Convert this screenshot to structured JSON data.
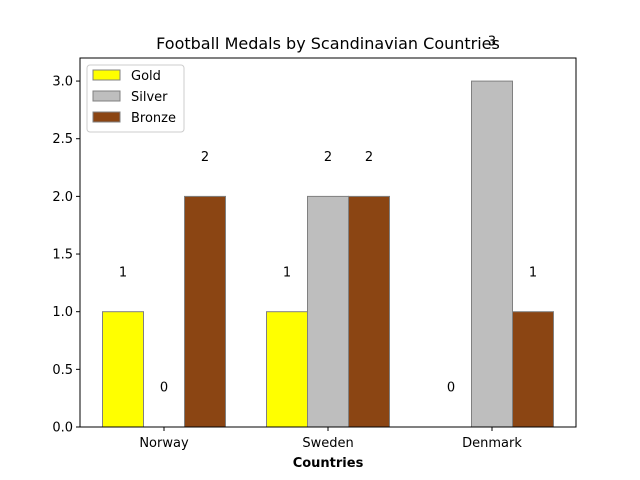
{
  "chart_data": {
    "type": "bar",
    "title": "Football Medals by Scandinavian Countries",
    "xlabel": "Countries",
    "ylabel": "",
    "categories": [
      "Norway",
      "Sweden",
      "Denmark"
    ],
    "series": [
      {
        "name": "Gold",
        "values": [
          1,
          1,
          0
        ],
        "color": "#ffff00"
      },
      {
        "name": "Silver",
        "values": [
          0,
          2,
          3
        ],
        "color": "#bebebe"
      },
      {
        "name": "Bronze",
        "values": [
          2,
          2,
          1
        ],
        "color": "#8b4513"
      }
    ],
    "ylim": [
      0,
      3.2
    ],
    "yticks": [
      "0.0",
      "0.5",
      "1.0",
      "1.5",
      "2.0",
      "2.5",
      "3.0"
    ],
    "bar_labels": [
      [
        "1",
        "1",
        "0"
      ],
      [
        "0",
        "2",
        "3"
      ],
      [
        "2",
        "2",
        "1"
      ]
    ],
    "grid": false,
    "legend_position": "upper-left",
    "bar_edge_color": "#808080"
  }
}
